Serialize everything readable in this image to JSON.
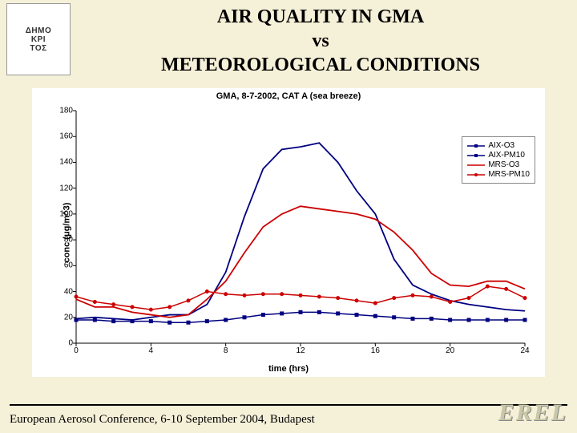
{
  "title": {
    "line1": "AIR QUALITY IN GMA",
    "line2": "vs",
    "line3": "METEOROLOGICAL CONDITIONS"
  },
  "logo": {
    "text1": "ΔHMO",
    "text2": "KPI",
    "text3": "TOΣ"
  },
  "footer": {
    "conference": "European Aerosol Conference, 6-10 September 2004, Budapest",
    "brand": "EREL"
  },
  "chart": {
    "type": "line",
    "title": "GMA, 8-7-2002, CAT A (sea breeze)",
    "title_fontsize": 11,
    "xlabel": "time (hrs)",
    "ylabel": "conc (μg/m^3)",
    "label_fontsize": 11,
    "background_color": "#ffffff",
    "axis_color": "#000000",
    "xlim": [
      0,
      24
    ],
    "ylim": [
      0,
      180
    ],
    "xticks": [
      0,
      4,
      8,
      12,
      16,
      20,
      24
    ],
    "yticks": [
      0,
      20,
      40,
      60,
      80,
      100,
      120,
      140,
      160,
      180
    ],
    "legend": {
      "position": "top-right",
      "border_color": "#888888",
      "items": [
        {
          "label": "AIX-O3",
          "color": "#000080",
          "marker": "square",
          "line_width": 1.5
        },
        {
          "label": "AIX-PM10",
          "color": "#000080",
          "marker": "square",
          "line_width": 1.5
        },
        {
          "label": "MRS-O3",
          "color": "#cc0000",
          "marker": "none",
          "line_width": 1.5
        },
        {
          "label": "MRS-PM10",
          "color": "#cc0000",
          "marker": "circle",
          "line_width": 1.5
        }
      ]
    },
    "series": [
      {
        "name": "AIX-O3",
        "color": "#000080",
        "marker": "none",
        "line_width": 1.8,
        "x": [
          0,
          1,
          2,
          3,
          4,
          5,
          6,
          7,
          8,
          9,
          10,
          11,
          12,
          13,
          14,
          15,
          16,
          17,
          18,
          19,
          20,
          21,
          22,
          23,
          24
        ],
        "y": [
          19,
          20,
          19,
          18,
          20,
          22,
          22,
          30,
          55,
          98,
          135,
          150,
          152,
          155,
          140,
          118,
          100,
          65,
          45,
          38,
          33,
          30,
          28,
          26,
          25
        ]
      },
      {
        "name": "AIX-PM10",
        "color": "#000080",
        "marker": "square",
        "marker_size": 4,
        "line_width": 1.5,
        "x": [
          0,
          1,
          2,
          3,
          4,
          5,
          6,
          7,
          8,
          9,
          10,
          11,
          12,
          13,
          14,
          15,
          16,
          17,
          18,
          19,
          20,
          21,
          22,
          23,
          24
        ],
        "y": [
          18,
          18,
          17,
          17,
          17,
          16,
          16,
          17,
          18,
          20,
          22,
          23,
          24,
          24,
          23,
          22,
          21,
          20,
          19,
          19,
          18,
          18,
          18,
          18,
          18
        ]
      },
      {
        "name": "MRS-O3",
        "color": "#cc0000",
        "marker": "none",
        "line_width": 1.8,
        "x": [
          0,
          1,
          2,
          3,
          4,
          5,
          6,
          7,
          8,
          9,
          10,
          11,
          12,
          13,
          14,
          15,
          16,
          17,
          18,
          19,
          20,
          21,
          22,
          23,
          24
        ],
        "y": [
          34,
          28,
          28,
          24,
          22,
          20,
          22,
          34,
          48,
          70,
          90,
          100,
          106,
          104,
          102,
          100,
          96,
          86,
          72,
          54,
          45,
          44,
          48,
          48,
          42
        ]
      },
      {
        "name": "MRS-PM10",
        "color": "#cc0000",
        "marker": "circle",
        "marker_size": 4,
        "line_width": 1.5,
        "x": [
          0,
          1,
          2,
          3,
          4,
          5,
          6,
          7,
          8,
          9,
          10,
          11,
          12,
          13,
          14,
          15,
          16,
          17,
          18,
          19,
          20,
          21,
          22,
          23,
          24
        ],
        "y": [
          36,
          32,
          30,
          28,
          26,
          28,
          33,
          40,
          38,
          37,
          38,
          38,
          37,
          36,
          35,
          33,
          31,
          35,
          37,
          36,
          32,
          35,
          44,
          42,
          35
        ]
      }
    ]
  }
}
